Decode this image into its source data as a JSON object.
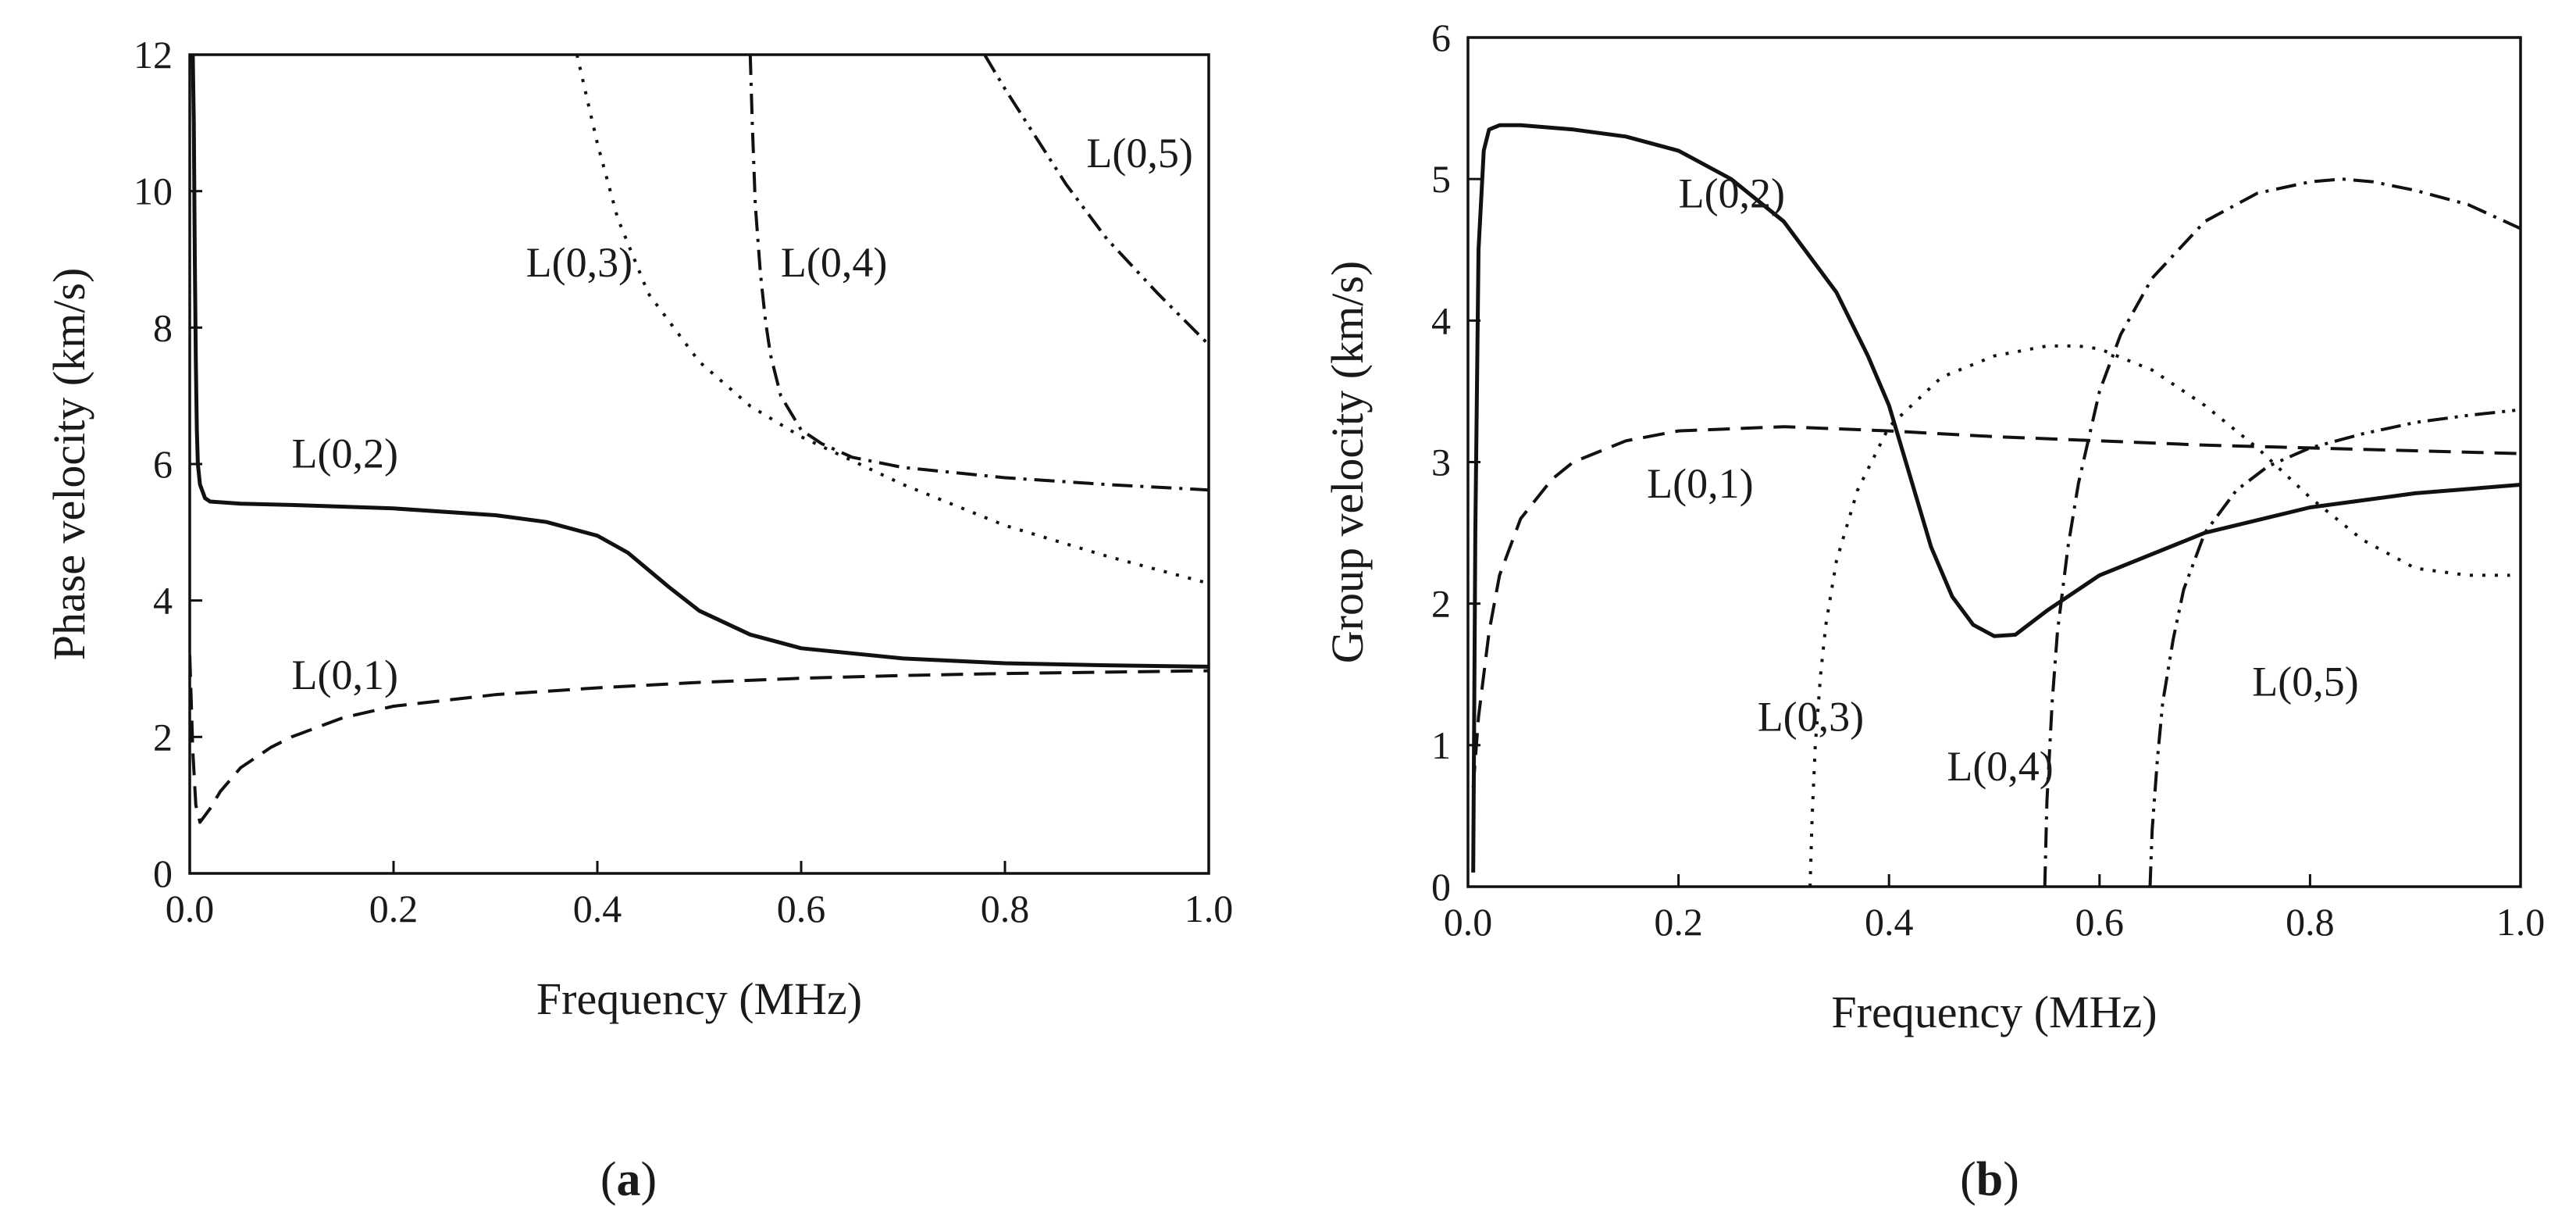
{
  "chart_data": [
    {
      "type": "line",
      "panel": "a",
      "panel_label": {
        "open": "(",
        "letter": "a",
        "close": ")"
      },
      "title": "",
      "xlabel": "Frequency (MHz)",
      "ylabel": "Phase velocity (km/s)",
      "xlim": [
        0,
        1
      ],
      "ylim": [
        0,
        12
      ],
      "xticks": [
        0,
        0.2,
        0.4,
        0.6,
        0.8,
        1
      ],
      "xtick_labels": [
        "0.0",
        "0.2",
        "0.4",
        "0.6",
        "0.8",
        "1.0"
      ],
      "yticks": [
        0,
        2,
        4,
        6,
        8,
        10,
        12
      ],
      "ytick_labels": [
        "0",
        "2",
        "4",
        "6",
        "8",
        "10",
        "12"
      ],
      "grid": false,
      "series": [
        {
          "name": "L(0,1)",
          "style": "dashed",
          "x": [
            0.0,
            0.003,
            0.006,
            0.01,
            0.015,
            0.02,
            0.03,
            0.05,
            0.08,
            0.1,
            0.15,
            0.2,
            0.3,
            0.4,
            0.5,
            0.6,
            0.7,
            0.8,
            0.9,
            1.0
          ],
          "y": [
            3.2,
            1.8,
            1.0,
            0.75,
            0.85,
            0.95,
            1.2,
            1.55,
            1.85,
            2.0,
            2.28,
            2.45,
            2.62,
            2.72,
            2.8,
            2.86,
            2.9,
            2.93,
            2.95,
            2.97
          ]
        },
        {
          "name": "L(0,2)",
          "style": "solid",
          "x": [
            0.003,
            0.004,
            0.005,
            0.006,
            0.007,
            0.008,
            0.01,
            0.015,
            0.02,
            0.05,
            0.1,
            0.2,
            0.3,
            0.35,
            0.4,
            0.43,
            0.45,
            0.47,
            0.5,
            0.55,
            0.6,
            0.7,
            0.8,
            0.9,
            1.0
          ],
          "y": [
            12.0,
            11.0,
            9.0,
            7.5,
            6.5,
            6.0,
            5.7,
            5.5,
            5.45,
            5.42,
            5.4,
            5.35,
            5.25,
            5.15,
            4.95,
            4.7,
            4.45,
            4.2,
            3.85,
            3.5,
            3.3,
            3.15,
            3.08,
            3.05,
            3.03
          ]
        },
        {
          "name": "L(0,3)",
          "style": "dotted",
          "x": [
            0.38,
            0.4,
            0.42,
            0.45,
            0.5,
            0.55,
            0.6,
            0.7,
            0.8,
            0.9,
            1.0
          ],
          "y": [
            12.0,
            10.7,
            9.6,
            8.5,
            7.5,
            6.85,
            6.4,
            5.7,
            5.1,
            4.65,
            4.25
          ]
        },
        {
          "name": "L(0,4)",
          "style": "dashdot",
          "x": [
            0.55,
            0.552,
            0.555,
            0.56,
            0.565,
            0.57,
            0.58,
            0.6,
            0.62,
            0.65,
            0.7,
            0.8,
            0.9,
            1.0
          ],
          "y": [
            12.0,
            11.0,
            9.8,
            8.8,
            8.1,
            7.6,
            7.0,
            6.5,
            6.3,
            6.1,
            5.95,
            5.8,
            5.7,
            5.62
          ]
        },
        {
          "name": "L(0,5)",
          "style": "dashdotdot",
          "x": [
            0.78,
            0.8,
            0.83,
            0.86,
            0.9,
            0.95,
            1.0
          ],
          "y": [
            12.0,
            11.5,
            10.8,
            10.1,
            9.3,
            8.5,
            7.75
          ]
        }
      ],
      "annotations": [
        {
          "text": "L(0,1)",
          "x": 0.1,
          "y": 2.7
        },
        {
          "text": "L(0,2)",
          "x": 0.1,
          "y": 5.95
        },
        {
          "text": "L(0,3)",
          "x": 0.33,
          "y": 8.75
        },
        {
          "text": "L(0,4)",
          "x": 0.58,
          "y": 8.75
        },
        {
          "text": "L(0,5)",
          "x": 0.88,
          "y": 10.35
        }
      ]
    },
    {
      "type": "line",
      "panel": "b",
      "panel_label": {
        "open": "(",
        "letter": "b",
        "close": ")"
      },
      "title": "",
      "xlabel": "Frequency (MHz)",
      "ylabel": "Group velocity (km/s)",
      "xlim": [
        0,
        1
      ],
      "ylim": [
        0,
        6
      ],
      "xticks": [
        0,
        0.2,
        0.4,
        0.6,
        0.8,
        1
      ],
      "xtick_labels": [
        "0.0",
        "0.2",
        "0.4",
        "0.6",
        "0.8",
        "1.0"
      ],
      "yticks": [
        0,
        1,
        2,
        3,
        4,
        5,
        6
      ],
      "ytick_labels": [
        "0",
        "1",
        "2",
        "3",
        "4",
        "5",
        "6"
      ],
      "grid": false,
      "series": [
        {
          "name": "L(0,1)",
          "style": "dashed",
          "x": [
            0.005,
            0.01,
            0.02,
            0.03,
            0.05,
            0.08,
            0.1,
            0.15,
            0.2,
            0.3,
            0.4,
            0.5,
            0.6,
            0.7,
            0.8,
            0.9,
            1.0
          ],
          "y": [
            0.7,
            1.2,
            1.8,
            2.2,
            2.6,
            2.88,
            3.0,
            3.15,
            3.22,
            3.25,
            3.22,
            3.18,
            3.15,
            3.12,
            3.1,
            3.08,
            3.06
          ]
        },
        {
          "name": "L(0,2)",
          "style": "solid",
          "x": [
            0.005,
            0.007,
            0.01,
            0.015,
            0.02,
            0.03,
            0.05,
            0.1,
            0.15,
            0.2,
            0.25,
            0.3,
            0.35,
            0.38,
            0.4,
            0.42,
            0.44,
            0.46,
            0.48,
            0.5,
            0.52,
            0.55,
            0.6,
            0.7,
            0.8,
            0.9,
            1.0
          ],
          "y": [
            0.1,
            2.5,
            4.5,
            5.2,
            5.35,
            5.38,
            5.38,
            5.35,
            5.3,
            5.2,
            5.0,
            4.7,
            4.2,
            3.75,
            3.4,
            2.9,
            2.4,
            2.05,
            1.85,
            1.77,
            1.78,
            1.95,
            2.2,
            2.5,
            2.68,
            2.78,
            2.84
          ]
        },
        {
          "name": "L(0,3)",
          "style": "dotted",
          "x": [
            0.325,
            0.327,
            0.33,
            0.335,
            0.34,
            0.35,
            0.37,
            0.4,
            0.45,
            0.5,
            0.55,
            0.58,
            0.6,
            0.65,
            0.7,
            0.75,
            0.8,
            0.85,
            0.9,
            0.95,
            0.99
          ],
          "y": [
            0.0,
            0.5,
            1.0,
            1.5,
            1.85,
            2.3,
            2.8,
            3.25,
            3.6,
            3.75,
            3.82,
            3.82,
            3.8,
            3.65,
            3.4,
            3.1,
            2.75,
            2.45,
            2.25,
            2.2,
            2.2
          ]
        },
        {
          "name": "L(0,4)",
          "style": "dashdot",
          "x": [
            0.548,
            0.55,
            0.555,
            0.56,
            0.57,
            0.58,
            0.6,
            0.62,
            0.65,
            0.7,
            0.75,
            0.8,
            0.83,
            0.86,
            0.9,
            0.95,
            1.0
          ],
          "y": [
            0.0,
            0.6,
            1.3,
            1.8,
            2.4,
            2.85,
            3.5,
            3.9,
            4.3,
            4.7,
            4.9,
            4.98,
            5.0,
            4.98,
            4.92,
            4.82,
            4.65
          ]
        },
        {
          "name": "L(0,5)",
          "style": "dashdotdot",
          "x": [
            0.648,
            0.65,
            0.655,
            0.66,
            0.67,
            0.68,
            0.7,
            0.73,
            0.76,
            0.8,
            0.85,
            0.9,
            0.95,
            1.0
          ],
          "y": [
            0.0,
            0.4,
            0.9,
            1.3,
            1.75,
            2.1,
            2.5,
            2.8,
            2.97,
            3.1,
            3.2,
            3.28,
            3.33,
            3.37
          ]
        }
      ],
      "annotations": [
        {
          "text": "L(0,1)",
          "x": 0.17,
          "y": 2.75
        },
        {
          "text": "L(0,2)",
          "x": 0.2,
          "y": 4.8
        },
        {
          "text": "L(0,3)",
          "x": 0.275,
          "y": 1.1
        },
        {
          "text": "L(0,4)",
          "x": 0.455,
          "y": 0.75
        },
        {
          "text": "L(0,5)",
          "x": 0.745,
          "y": 1.35
        }
      ]
    }
  ]
}
